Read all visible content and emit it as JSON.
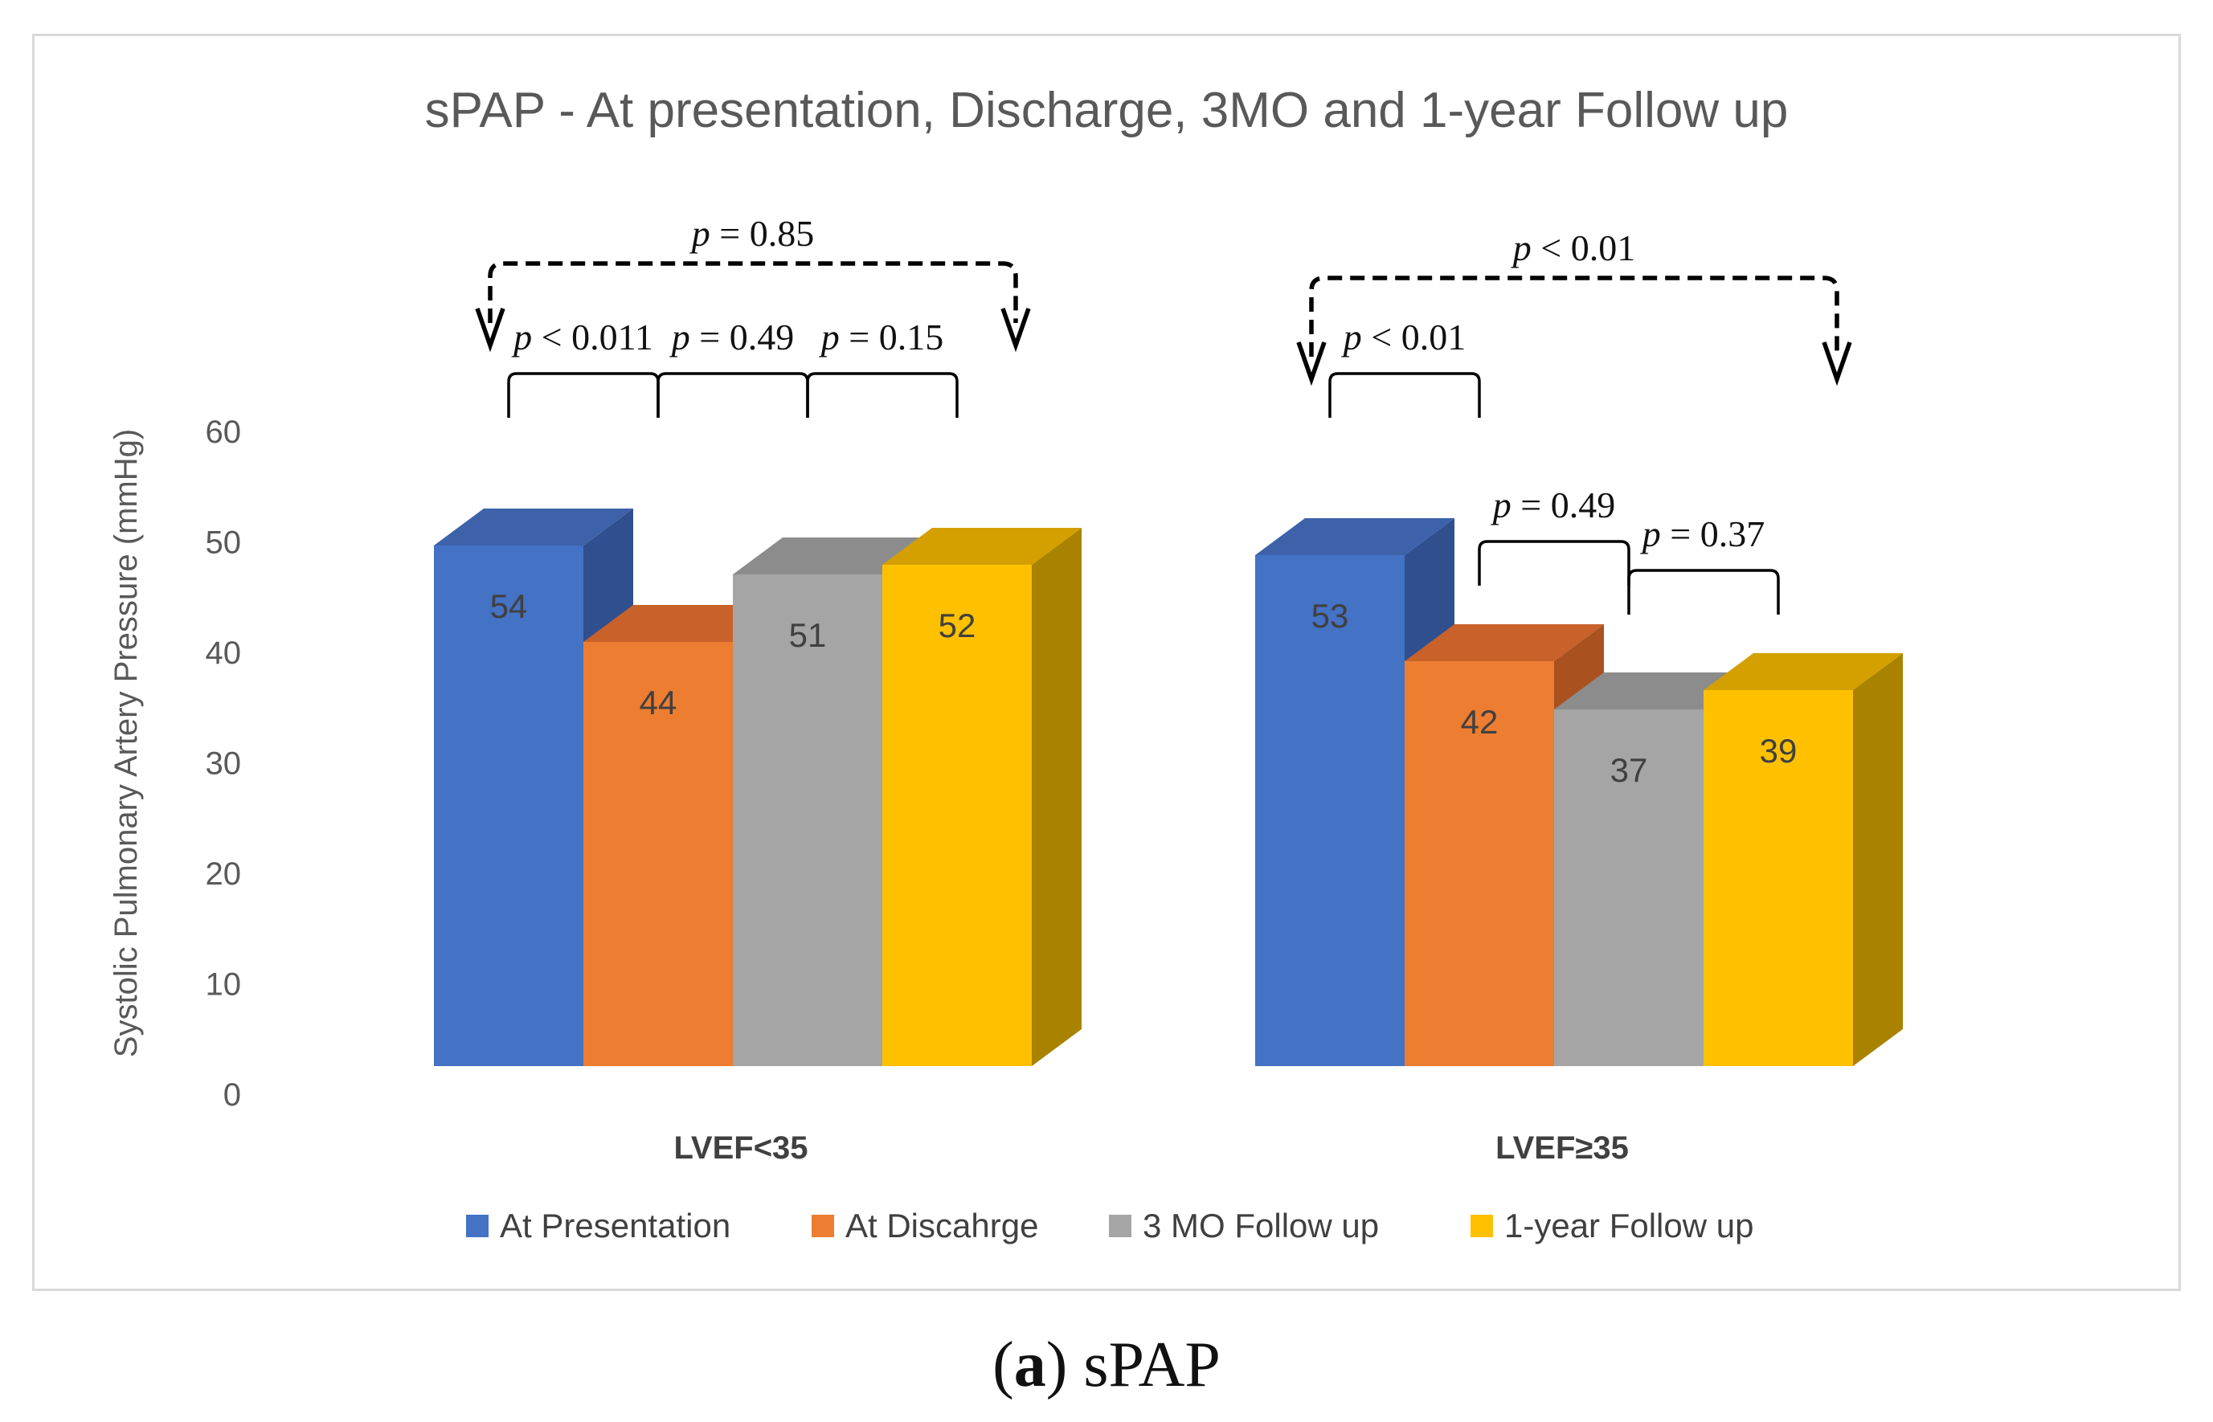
{
  "chart_data": {
    "type": "bar",
    "style": "3d-clustered-column",
    "title": "sPAP - At presentation, Discharge, 3MO and 1-year Follow up",
    "ylabel": "Systolic Pulmonary Artery Pressure (mmHg)",
    "xlabel": "",
    "ylim": [
      0,
      60
    ],
    "yticks": [
      0,
      10,
      20,
      30,
      40,
      50,
      60
    ],
    "categories": [
      "LVEF<35",
      "LVEF≥35"
    ],
    "series": [
      {
        "name": "At Presentation",
        "values": [
          54,
          53
        ],
        "color": "#4472c4",
        "top": "#3d62aa",
        "side": "#2f4f8f"
      },
      {
        "name": "At Discahrge",
        "values": [
          44,
          42
        ],
        "color": "#ed7d31",
        "top": "#c8612a",
        "side": "#a9511f"
      },
      {
        "name": "3 MO Follow up",
        "values": [
          51,
          37
        ],
        "color": "#a5a5a5",
        "top": "#8c8c8c",
        "side": "#7b7b7b"
      },
      {
        "name": "1-year Follow up",
        "values": [
          52,
          39
        ],
        "color": "#ffc000",
        "top": "#d4a000",
        "side": "#a98200"
      }
    ],
    "annotations": [
      {
        "group": 0,
        "kind": "pair",
        "from": 0,
        "to": 1,
        "label": "< 0.011"
      },
      {
        "group": 0,
        "kind": "pair",
        "from": 1,
        "to": 2,
        "label": "= 0.49"
      },
      {
        "group": 0,
        "kind": "pair",
        "from": 2,
        "to": 3,
        "label": "= 0.15"
      },
      {
        "group": 0,
        "kind": "overall",
        "from": 0,
        "to": 3,
        "label": "= 0.85"
      },
      {
        "group": 1,
        "kind": "pair",
        "from": 0,
        "to": 1,
        "label": "< 0.01"
      },
      {
        "group": 1,
        "kind": "pair",
        "from": 1,
        "to": 2,
        "label": "= 0.49"
      },
      {
        "group": 1,
        "kind": "pair",
        "from": 2,
        "to": 3,
        "label": "= 0.37"
      },
      {
        "group": 1,
        "kind": "overall",
        "from": 0,
        "to": 3,
        "label": "< 0.01"
      }
    ],
    "p_symbol": "p",
    "legend_position": "bottom"
  },
  "caption": {
    "letter": "a",
    "text": "sPAP"
  }
}
